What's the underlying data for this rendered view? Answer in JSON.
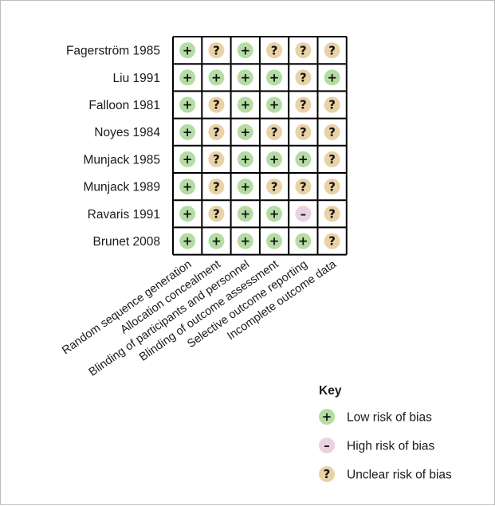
{
  "chart_data": {
    "type": "table",
    "studies": [
      "Fagerström 1985",
      "Liu 1991",
      "Falloon 1981",
      "Noyes 1984",
      "Munjack 1985",
      "Munjack 1989",
      "Ravaris 1991",
      "Brunet 2008"
    ],
    "domains": [
      "Random sequence generation",
      "Allocation concealment",
      "Blinding of participants and personnel",
      "Blinding of outcome assessment",
      "Selective outcome reporting",
      "Incomplete outcome data"
    ],
    "judgements": [
      [
        "low",
        "unclear",
        "low",
        "unclear",
        "unclear",
        "unclear"
      ],
      [
        "low",
        "low",
        "low",
        "low",
        "unclear",
        "low"
      ],
      [
        "low",
        "unclear",
        "low",
        "low",
        "unclear",
        "unclear"
      ],
      [
        "low",
        "unclear",
        "low",
        "unclear",
        "unclear",
        "unclear"
      ],
      [
        "low",
        "unclear",
        "low",
        "low",
        "low",
        "unclear"
      ],
      [
        "low",
        "unclear",
        "low",
        "unclear",
        "unclear",
        "unclear"
      ],
      [
        "low",
        "unclear",
        "low",
        "low",
        "high",
        "unclear"
      ],
      [
        "low",
        "low",
        "low",
        "low",
        "low",
        "unclear"
      ]
    ],
    "legend_position": "bottom-right",
    "key": {
      "title": "Key",
      "items": [
        {
          "level": "low",
          "symbol": "+",
          "label": "Low risk of bias",
          "color": "#b5dca4"
        },
        {
          "level": "high",
          "symbol": "–",
          "label": "High risk of bias",
          "color": "#ecd2e0"
        },
        {
          "level": "unclear",
          "symbol": "?",
          "label": "Unclear risk of bias",
          "color": "#e8d2a6"
        }
      ]
    },
    "grid_color": "#000000"
  }
}
